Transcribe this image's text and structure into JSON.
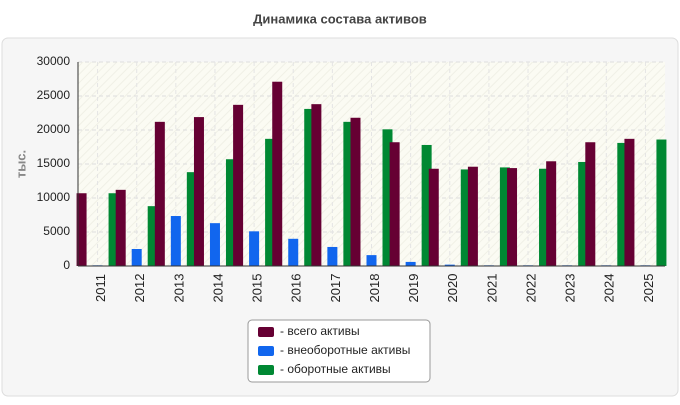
{
  "chart_data": {
    "type": "bar",
    "title": "Динамика состава активов",
    "ylabel": "тыс.",
    "categories": [
      "2011",
      "2012",
      "2013",
      "2014",
      "2015",
      "2016",
      "2017",
      "2018",
      "2019",
      "2020",
      "2021",
      "2022",
      "2023",
      "2024",
      "2025"
    ],
    "series": [
      {
        "name": "- всего активы",
        "color": "#660033",
        "values": [
          10700,
          11200,
          21200,
          21900,
          23700,
          27100,
          23800,
          21800,
          18200,
          14300,
          14600,
          14400,
          15400,
          18200,
          18700
        ]
      },
      {
        "name": "- внеоборотные активы",
        "color": "#1166ee",
        "values": [
          100,
          2500,
          7350,
          6300,
          5100,
          4000,
          2800,
          1600,
          600,
          200,
          100,
          100,
          100,
          100,
          100
        ]
      },
      {
        "name": "- оборотные активы",
        "color": "#008833",
        "values": [
          10700,
          8800,
          13800,
          15700,
          18700,
          23100,
          21200,
          20100,
          17800,
          14200,
          14500,
          14300,
          15300,
          18100,
          18600
        ]
      }
    ],
    "ylim": [
      0,
      30000
    ],
    "yticks": [
      0,
      5000,
      10000,
      15000,
      20000,
      25000,
      30000
    ],
    "grid": true
  }
}
